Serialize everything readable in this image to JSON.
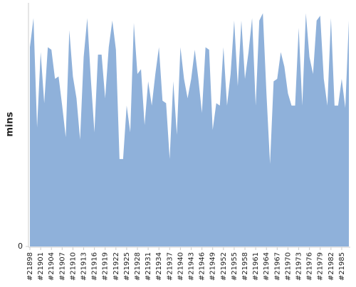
{
  "chart_data": {
    "type": "area",
    "y_label": "mins",
    "color": "#8fb1da",
    "categories": [
      "#21898",
      null,
      null,
      "#21901",
      null,
      null,
      "#21904",
      null,
      null,
      "#21907",
      null,
      null,
      "#21910",
      null,
      null,
      "#21913",
      null,
      null,
      "#21916",
      null,
      null,
      "#21919",
      null,
      null,
      "#21922",
      null,
      null,
      "#21925",
      null,
      null,
      "#21928",
      null,
      null,
      "#21931",
      null,
      null,
      "#21934",
      null,
      null,
      "#21937",
      null,
      null,
      "#21940",
      null,
      null,
      "#21943",
      null,
      null,
      "#21946",
      null,
      null,
      "#21949",
      null,
      null,
      "#21952",
      null,
      null,
      "#21955",
      null,
      null,
      "#21958",
      null,
      null,
      "#21961",
      null,
      null,
      "#21964",
      null,
      null,
      "#21967",
      null,
      null,
      "#21970",
      null,
      null,
      "#21973",
      null,
      null,
      "#21976",
      null,
      null,
      "#21979",
      null,
      null,
      "#21982",
      null,
      null,
      "#21985",
      null,
      null
    ],
    "values": [
      82,
      94,
      49,
      80,
      59,
      82,
      81,
      69,
      70,
      58,
      45,
      89,
      70,
      61,
      44,
      78,
      94,
      69,
      47,
      79,
      79,
      61,
      82,
      93,
      81,
      36,
      36,
      58,
      47,
      92,
      71,
      73,
      50,
      68,
      58,
      71,
      82,
      60,
      59,
      36,
      68,
      46,
      82,
      69,
      61,
      69,
      81,
      69,
      55,
      82,
      81,
      48,
      59,
      58,
      82,
      58,
      71,
      93,
      66,
      93,
      69,
      80,
      94,
      58,
      93,
      96,
      63,
      34,
      68,
      69,
      80,
      74,
      63,
      58,
      58,
      90,
      58,
      96,
      78,
      71,
      93,
      95,
      69,
      58,
      94,
      58,
      58,
      69,
      57,
      93
    ],
    "ylim": [
      0,
      100
    ],
    "yticks": [
      0
    ]
  }
}
